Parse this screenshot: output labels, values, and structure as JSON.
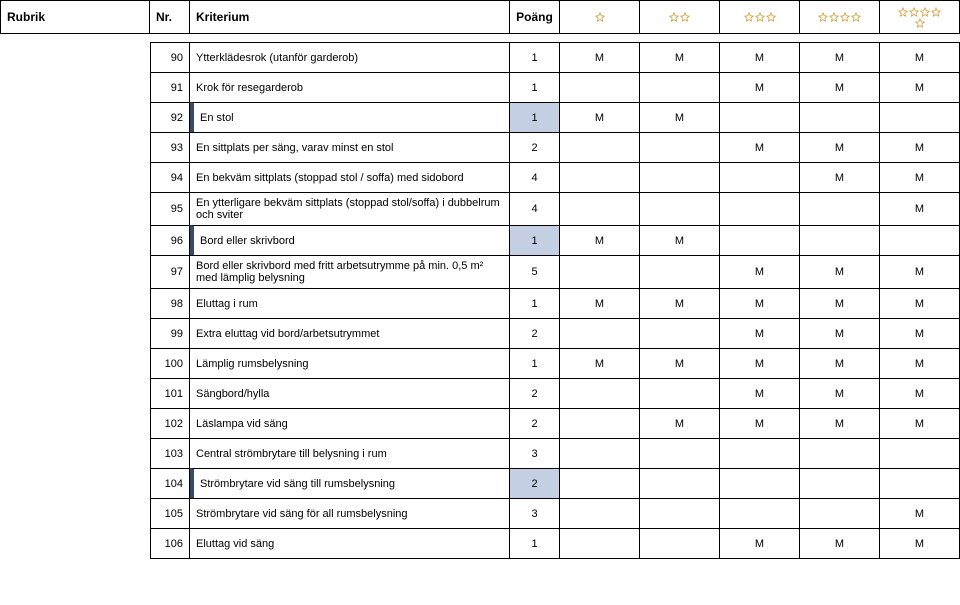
{
  "header": {
    "rubrik": "Rubrik",
    "nr": "Nr.",
    "kriterium": "Kriterium",
    "poang": "Poäng"
  },
  "star_color": "#d4a542",
  "rows": [
    {
      "nr": "90",
      "krit": "Ytterklädesrok (utanför garderob)",
      "poang": "1",
      "c": [
        "M",
        "M",
        "M",
        "M",
        "M"
      ],
      "hl": false
    },
    {
      "nr": "91",
      "krit": "Krok för resegarderob",
      "poang": "1",
      "c": [
        "",
        "",
        "M",
        "M",
        "M"
      ],
      "hl": false
    },
    {
      "nr": "92",
      "krit": "En stol",
      "poang": "1",
      "c": [
        "M",
        "M",
        "",
        "",
        ""
      ],
      "hl": true
    },
    {
      "nr": "93",
      "krit": "En sittplats per säng, varav minst en stol",
      "poang": "2",
      "c": [
        "",
        "",
        "M",
        "M",
        "M"
      ],
      "hl": false
    },
    {
      "nr": "94",
      "krit": "En bekväm sittplats (stoppad stol / soffa) med sidobord",
      "poang": "4",
      "c": [
        "",
        "",
        "",
        "M",
        "M"
      ],
      "hl": false
    },
    {
      "nr": "95",
      "krit": "En ytterligare bekväm sittplats (stoppad stol/soffa) i dubbelrum och sviter",
      "poang": "4",
      "c": [
        "",
        "",
        "",
        "",
        "M"
      ],
      "hl": false
    },
    {
      "nr": "96",
      "krit": "Bord eller skrivbord",
      "poang": "1",
      "c": [
        "M",
        "M",
        "",
        "",
        ""
      ],
      "hl": true
    },
    {
      "nr": "97",
      "krit": "Bord eller skrivbord med fritt arbetsutrymme på min. 0,5 m² med lämplig belysning",
      "poang": "5",
      "c": [
        "",
        "",
        "M",
        "M",
        "M"
      ],
      "hl": false
    },
    {
      "nr": "98",
      "krit": "Eluttag i rum",
      "poang": "1",
      "c": [
        "M",
        "M",
        "M",
        "M",
        "M"
      ],
      "hl": false
    },
    {
      "nr": "99",
      "krit": "Extra eluttag vid bord/arbetsutrymmet",
      "poang": "2",
      "c": [
        "",
        "",
        "M",
        "M",
        "M"
      ],
      "hl": false
    },
    {
      "nr": "100",
      "krit": "Lämplig rumsbelysning",
      "poang": "1",
      "c": [
        "M",
        "M",
        "M",
        "M",
        "M"
      ],
      "hl": false
    },
    {
      "nr": "101",
      "krit": "Sängbord/hylla",
      "poang": "2",
      "c": [
        "",
        "",
        "M",
        "M",
        "M"
      ],
      "hl": false
    },
    {
      "nr": "102",
      "krit": "Läslampa vid säng",
      "poang": "2",
      "c": [
        "",
        "M",
        "M",
        "M",
        "M"
      ],
      "hl": false
    },
    {
      "nr": "103",
      "krit": "Central strömbrytare till belysning i rum",
      "poang": "3",
      "c": [
        "",
        "",
        "",
        "",
        ""
      ],
      "hl": false
    },
    {
      "nr": "104",
      "krit": "Strömbrytare vid säng till rumsbelysning",
      "poang": "2",
      "c": [
        "",
        "",
        "",
        "",
        ""
      ],
      "hl": true
    },
    {
      "nr": "105",
      "krit": "Strömbrytare vid säng för all rumsbelysning",
      "poang": "3",
      "c": [
        "",
        "",
        "",
        "",
        "M"
      ],
      "hl": false
    },
    {
      "nr": "106",
      "krit": "Eluttag vid säng",
      "poang": "1",
      "c": [
        "",
        "",
        "M",
        "M",
        "M"
      ],
      "hl": false
    }
  ]
}
